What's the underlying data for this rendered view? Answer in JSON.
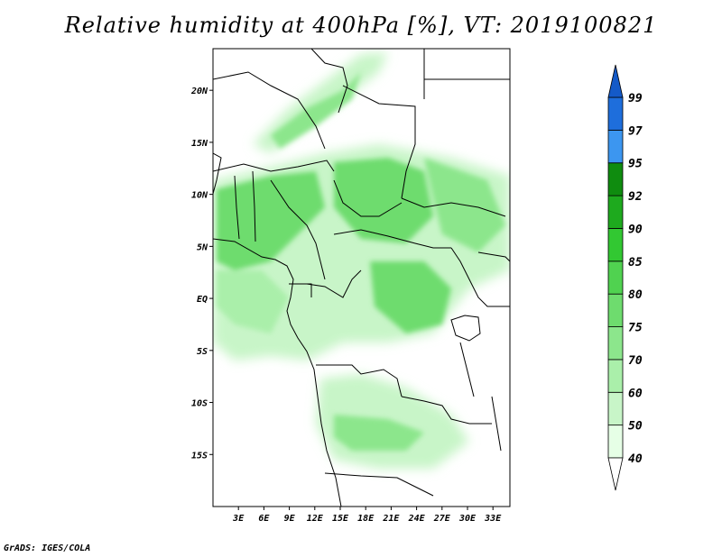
{
  "title": "Relative humidity at 400hPa [%], VT: 2019100821",
  "credit": "GrADS: IGES/COLA",
  "map": {
    "lon_range": [
      0,
      35
    ],
    "lat_range": [
      -20,
      24
    ],
    "lon_ticks": [
      "3E",
      "6E",
      "9E",
      "12E",
      "15E",
      "18E",
      "21E",
      "24E",
      "27E",
      "30E",
      "33E"
    ],
    "lat_ticks": [
      "20N",
      "15N",
      "10N",
      "5N",
      "EQ",
      "5S",
      "10S",
      "15S"
    ],
    "coastline_color": "#000000"
  },
  "colorbar": {
    "levels": [
      "40",
      "50",
      "60",
      "70",
      "75",
      "80",
      "85",
      "90",
      "92",
      "95",
      "97",
      "99"
    ],
    "colors": [
      "#ffffff",
      "#e6ffe6",
      "#c8f5c8",
      "#aaefaa",
      "#8ce68c",
      "#6edc6e",
      "#50d250",
      "#32c832",
      "#1eaa1e",
      "#0f8c0f",
      "#3c96f0",
      "#1e6edc",
      "#145ac8"
    ]
  },
  "chart_data": {
    "type": "heatmap",
    "title": "Relative humidity at 400hPa [%], VT: 2019100821",
    "units": "%",
    "valid_time": "2019100821",
    "lon_range": [
      0,
      35
    ],
    "lat_range": [
      -20,
      24
    ],
    "humid_regions": [
      {
        "lon": [
          0,
          12
        ],
        "lat": [
          5,
          13
        ],
        "rh": 85
      },
      {
        "lon": [
          14,
          35
        ],
        "lat": [
          6,
          15
        ],
        "rh": 85
      },
      {
        "lon": [
          17,
          27
        ],
        "lat": [
          -3,
          6
        ],
        "rh": 85
      },
      {
        "lon": [
          6,
          16
        ],
        "lat": [
          12,
          24
        ],
        "rh": 75
      },
      {
        "lon": [
          12,
          24
        ],
        "lat": [
          -16,
          -11
        ],
        "rh": 75
      },
      {
        "lon": [
          2,
          12
        ],
        "lat": [
          -5,
          5
        ],
        "rh": 70
      }
    ]
  }
}
